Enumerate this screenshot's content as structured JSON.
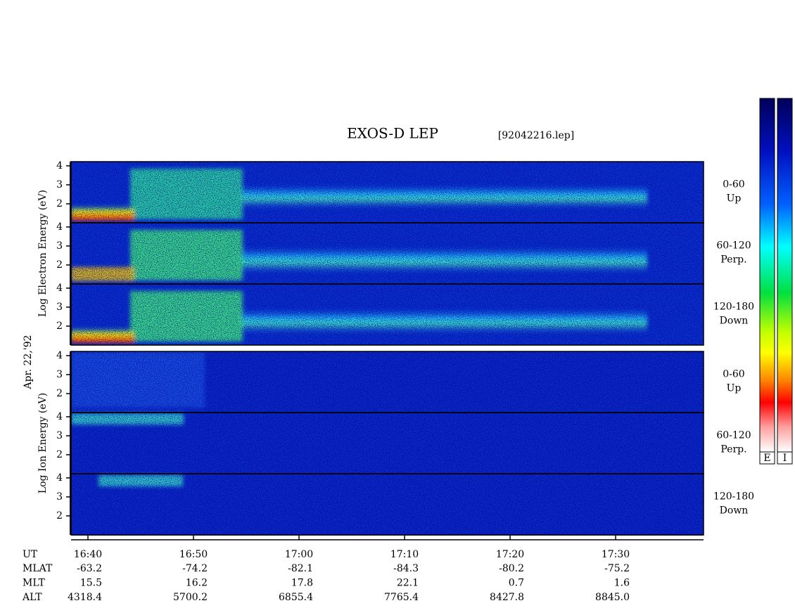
{
  "title": "EXOS-D LEP",
  "file_label": "[92042216.lep]",
  "date_label": "Apr. 22,'92",
  "chart_data": {
    "type": "spectrogram",
    "xlim": [
      998.4,
      1058.33
    ],
    "xticks": [
      {
        "value": 1000,
        "label": "16:40"
      },
      {
        "value": 1010,
        "label": "16:50"
      },
      {
        "value": 1020,
        "label": "17:00"
      },
      {
        "value": 1030,
        "label": "17:10"
      },
      {
        "value": 1040,
        "label": "17:20"
      },
      {
        "value": 1050,
        "label": "17:30"
      }
    ],
    "ylim": [
      1,
      4.22
    ],
    "yticks": [
      2,
      3,
      4
    ],
    "groups": [
      {
        "ylabel": "Log Electron Energy (eV)",
        "panels": [
          {
            "range": "0-60",
            "direction": "Up"
          },
          {
            "range": "60-120",
            "direction": "Perp."
          },
          {
            "range": "120-180",
            "direction": "Down"
          }
        ]
      },
      {
        "ylabel": "Log Ion Energy (eV)",
        "panels": [
          {
            "range": "0-60",
            "direction": "Up"
          },
          {
            "range": "60-120",
            "direction": "Perp."
          },
          {
            "range": "120-180",
            "direction": "Down"
          }
        ]
      }
    ],
    "colorbars": [
      "E",
      "I"
    ]
  },
  "ephemeris": {
    "time_header": "UT",
    "rows": [
      {
        "name": "MLAT",
        "values": [
          "-63.2",
          "-74.2",
          "-82.1",
          "-84.3",
          "-80.2",
          "-75.2"
        ]
      },
      {
        "name": "MLT",
        "values": [
          "15.5",
          "16.2",
          "17.8",
          "22.1",
          "0.7",
          "1.6"
        ]
      },
      {
        "name": "ALT",
        "values": [
          "4318.4",
          "5700.2",
          "6855.4",
          "7765.4",
          "8427.8",
          "8845.0"
        ]
      }
    ]
  }
}
